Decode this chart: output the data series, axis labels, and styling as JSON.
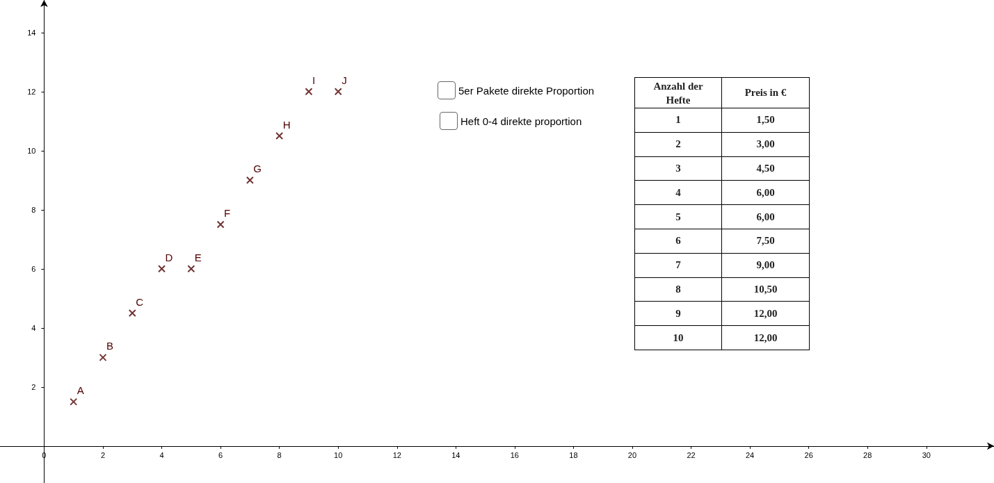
{
  "chart_data": {
    "type": "scatter",
    "x": [
      1,
      2,
      3,
      4,
      5,
      6,
      7,
      8,
      9,
      10
    ],
    "series": [
      {
        "color": "#4d0000",
        "values": [
          1.5,
          3,
          4.5,
          6,
          6,
          7.5,
          9,
          10.5,
          12,
          12
        ]
      }
    ],
    "marker": "cross",
    "grid": false,
    "xlim": [
      -1.5,
      32.3
    ],
    "ylim": [
      -1.25,
      15.1
    ],
    "xticks": [
      0,
      2,
      4,
      6,
      8,
      10,
      12,
      14,
      16,
      18,
      20,
      22,
      24,
      26,
      28,
      30
    ],
    "yticks": [
      2,
      4,
      6,
      8,
      10,
      12,
      14
    ],
    "annotations": [
      "5er Pakete direkte Proportion",
      "Heft 0-4 direkte proportion",
      "Anzahl der Hefte",
      "Preis in €",
      "1",
      "2",
      "3",
      "4",
      "5",
      "6",
      "7",
      "8",
      "9",
      "10",
      "1,50",
      "3,00",
      "4,50",
      "6,00",
      "6,00",
      "7,50",
      "9,00",
      "10,50",
      "12,00",
      "12,00",
      {
        "text": "A",
        "x": 1,
        "y": 1.5
      },
      {
        "text": "B",
        "x": 2,
        "y": 3
      },
      {
        "text": "C",
        "x": 3,
        "y": 4.5
      },
      {
        "text": "D",
        "x": 4,
        "y": 6
      },
      {
        "text": "E",
        "x": 5,
        "y": 6
      },
      {
        "text": "F",
        "x": 6,
        "y": 7.5
      },
      {
        "text": "G",
        "x": 7,
        "y": 9
      },
      {
        "text": "H",
        "x": 8,
        "y": 10.5
      },
      {
        "text": "I",
        "x": 9,
        "y": 12
      },
      {
        "text": "J",
        "x": 10,
        "y": 12
      }
    ]
  }
}
